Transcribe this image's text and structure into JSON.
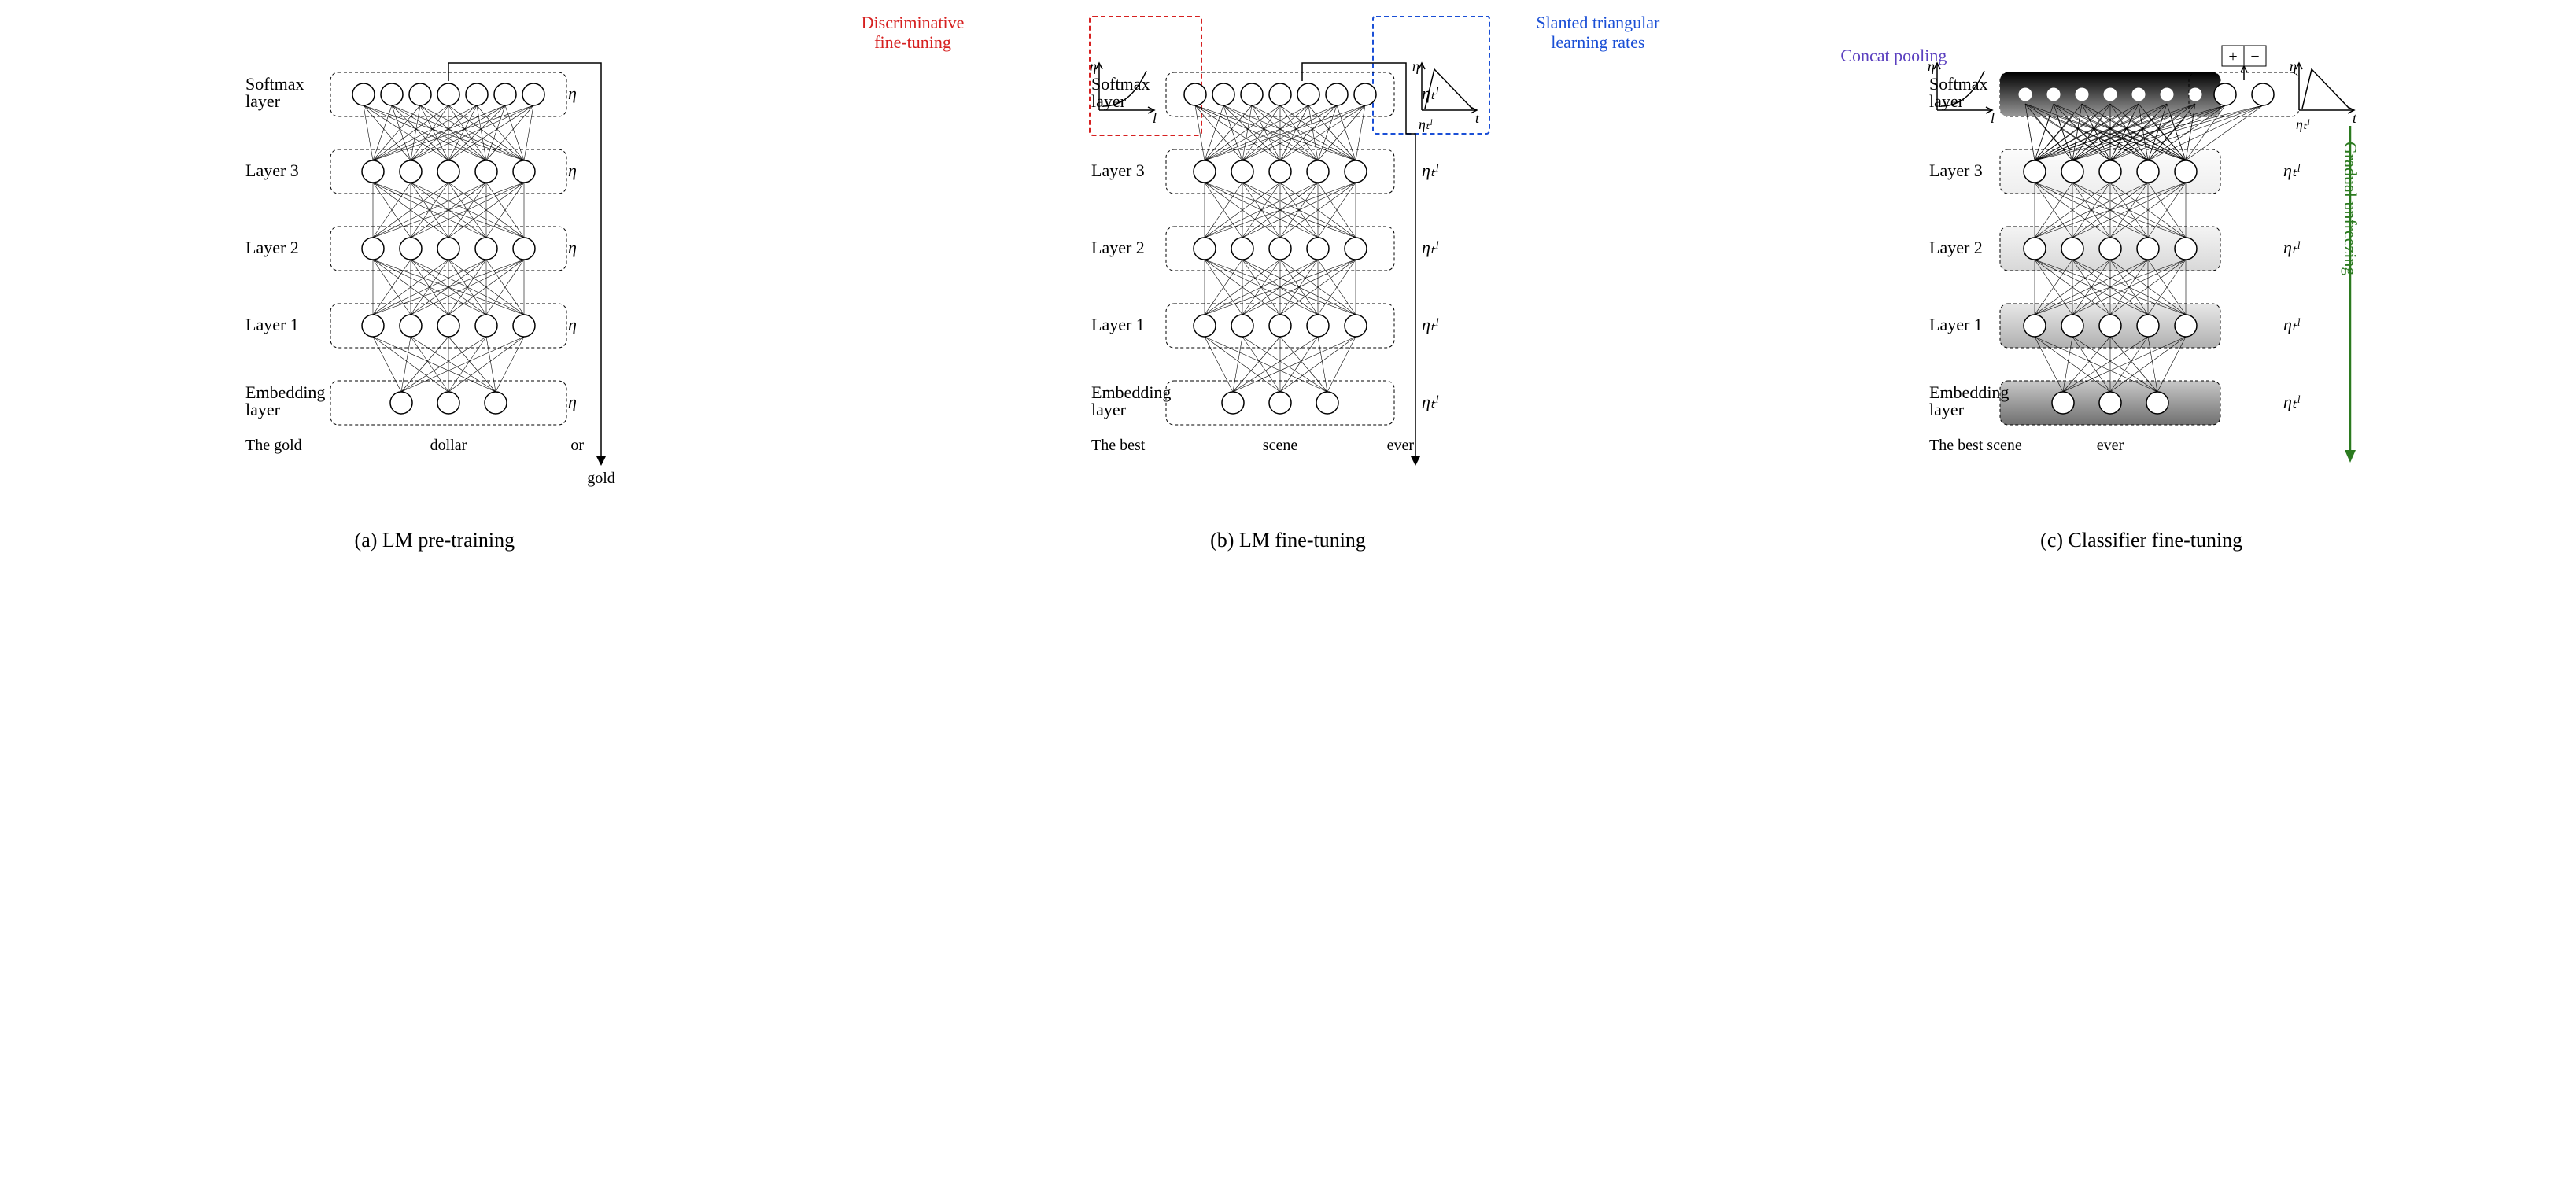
{
  "figure": {
    "background_color": "#ffffff",
    "font_family": "Times New Roman",
    "node_radius": 14,
    "node_fill": "#ffffff",
    "node_stroke": "#000000",
    "layer_box_stroke": "#000000",
    "layer_box_dash": "4 3",
    "layer_box_radius": 10,
    "edge_stroke": "#000000",
    "edge_width": 0.6
  },
  "annotations": {
    "discriminative": {
      "text1": "Discriminative",
      "text2": "fine-tuning",
      "color": "#d62020"
    },
    "slanted": {
      "text1": "Slanted triangular",
      "text2": "learning rates",
      "color": "#1a4fd6"
    },
    "concat": {
      "text": "Concat pooling",
      "color": "#5a3fbf"
    },
    "gradual": {
      "text": "Gradual unfreezing",
      "color": "#2b7a1f"
    }
  },
  "panels": {
    "a": {
      "caption": "(a) LM pre-training",
      "layers": [
        {
          "label": "Softmax\nlayer",
          "nodes": 7,
          "lr": "η"
        },
        {
          "label": "Layer 3",
          "nodes": 5,
          "lr": "η"
        },
        {
          "label": "Layer 2",
          "nodes": 5,
          "lr": "η"
        },
        {
          "label": "Layer 1",
          "nodes": 5,
          "lr": "η"
        },
        {
          "label": "Embedding\nlayer",
          "nodes": 3,
          "lr": "η"
        }
      ],
      "tokens_left": "The gold",
      "tokens_center": "dollar",
      "tokens_right": "or",
      "output_token": "gold"
    },
    "b": {
      "caption": "(b) LM fine-tuning",
      "layers": [
        {
          "label": "Softmax\nlayer",
          "nodes": 7,
          "lr": "ηₜˡ"
        },
        {
          "label": "Layer 3",
          "nodes": 5,
          "lr": "ηₜˡ"
        },
        {
          "label": "Layer 2",
          "nodes": 5,
          "lr": "ηₜˡ"
        },
        {
          "label": "Layer 1",
          "nodes": 5,
          "lr": "ηₜˡ"
        },
        {
          "label": "Embedding\nlayer",
          "nodes": 3,
          "lr": "ηₜˡ"
        }
      ],
      "tokens_left": "The best",
      "tokens_center": "scene",
      "tokens_right": "ever"
    },
    "c": {
      "caption": "(c) Classifier fine-tuning",
      "output_labels": [
        "+",
        "−"
      ],
      "concat_nodes": 7,
      "classifier_nodes": 2,
      "layers": [
        {
          "label": "Softmax\nlayer",
          "nodes": 7,
          "lr": ""
        },
        {
          "label": "Layer 3",
          "nodes": 5,
          "lr": "ηₜˡ",
          "bg_from": "#fcfcfc",
          "bg_to": "#eeeeee"
        },
        {
          "label": "Layer 2",
          "nodes": 5,
          "lr": "ηₜˡ",
          "bg_from": "#f4f4f4",
          "bg_to": "#d8d8d8"
        },
        {
          "label": "Layer 1",
          "nodes": 5,
          "lr": "ηₜˡ",
          "bg_from": "#e8e8e8",
          "bg_to": "#b0b0b0"
        },
        {
          "label": "Embedding\nlayer",
          "nodes": 3,
          "lr": "ηₜˡ",
          "bg_from": "#c8c8c8",
          "bg_to": "#707070"
        }
      ],
      "tokens_left": "The best scene",
      "tokens_center": "ever",
      "tokens_right": ""
    }
  },
  "mini_plots": {
    "eta_axis_label": "η",
    "l_axis_label": "l",
    "t_axis_label": "t",
    "lr_symbol": "ηₜˡ"
  }
}
